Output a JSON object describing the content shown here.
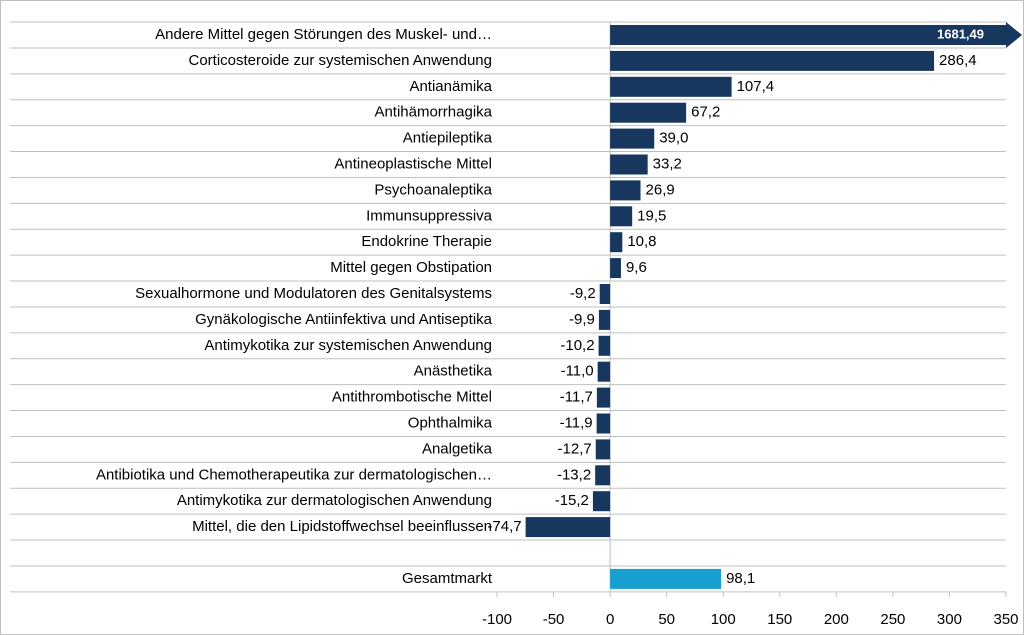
{
  "chart_data": {
    "type": "bar",
    "orientation": "horizontal",
    "categories": [
      "Andere Mittel gegen Störungen des Muskel- und…",
      "Corticosteroide zur systemischen Anwendung",
      "Antianämika",
      "Antihämorrhagika",
      "Antiepileptika",
      "Antineoplastische Mittel",
      "Psychoanaleptika",
      "Immunsuppressiva",
      "Endokrine Therapie",
      "Mittel gegen Obstipation",
      "Sexualhormone und Modulatoren des Genitalsystems",
      "Gynäkologische Antiinfektiva und Antiseptika",
      "Antimykotika zur systemischen Anwendung",
      "Anästhetika",
      "Antithrombotische Mittel",
      "Ophthalmika",
      "Analgetika",
      "Antibiotika und Chemotherapeutika zur dermatologischen…",
      "Antimykotika zur dermatologischen Anwendung",
      "Mittel, die den Lipidstoffwechsel beeinflussen",
      null,
      "Gesamtmarkt"
    ],
    "values": [
      1681.49,
      286.4,
      107.4,
      67.2,
      39.0,
      33.2,
      26.9,
      19.5,
      10.8,
      9.6,
      -9.2,
      -9.9,
      -10.2,
      -11.0,
      -11.7,
      -11.9,
      -12.7,
      -13.2,
      -15.2,
      -74.7,
      null,
      98.1
    ],
    "value_labels": [
      "1681,49",
      "286,4",
      "107,4",
      "67,2",
      "39,0",
      "33,2",
      "26,9",
      "19,5",
      "10,8",
      "9,6",
      "-9,2",
      "-9,9",
      "-10,2",
      "-11,0",
      "-11,7",
      "-11,9",
      "-12,7",
      "-13,2",
      "-15,2",
      "-74,7",
      null,
      "98,1"
    ],
    "colors": [
      "#17375e",
      "#17375e",
      "#17375e",
      "#17375e",
      "#17375e",
      "#17375e",
      "#17375e",
      "#17375e",
      "#17375e",
      "#17375e",
      "#17375e",
      "#17375e",
      "#17375e",
      "#17375e",
      "#17375e",
      "#17375e",
      "#17375e",
      "#17375e",
      "#17375e",
      "#17375e",
      null,
      "#17a0cf"
    ],
    "xlim": [
      -100,
      350
    ],
    "xticks": [
      -100,
      -50,
      0,
      50,
      100,
      150,
      200,
      250,
      300,
      350
    ]
  }
}
